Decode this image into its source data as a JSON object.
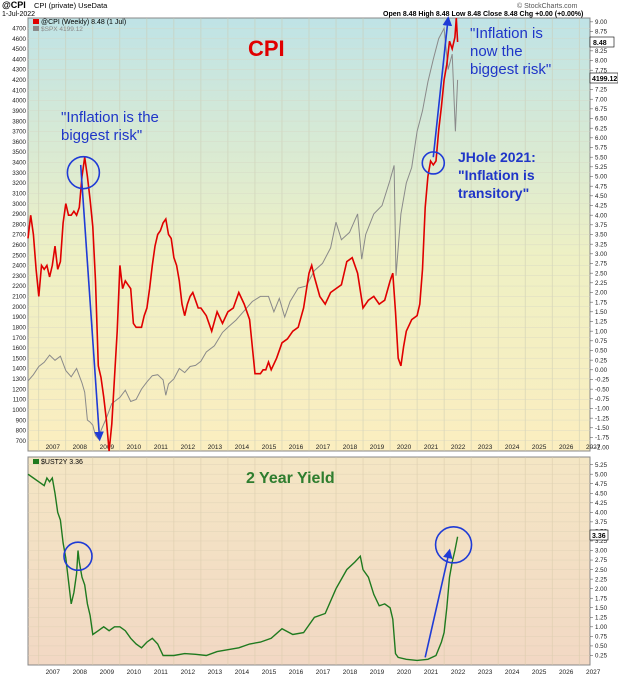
{
  "header": {
    "symbol": "@CPI",
    "symbol_desc": "CPI (private) UseData",
    "date": "1-Jul-2022",
    "ohlc": "Open 8.48  High 8.48  Low 8.48  Close 8.48  Chg +0.00 (+0.00%)",
    "ohlc_arrow": "▲",
    "watermark": "© StockCharts.com"
  },
  "colors": {
    "cpi_line": "#e00000",
    "spx_line": "#8a8a8a",
    "yield_line": "#1f7a1f",
    "arrow": "#1f3bd6",
    "title_red": "#e00000",
    "title_green": "#2e7d2e",
    "annotation_blue": "#1f35c8"
  },
  "chart_data": [
    {
      "type": "line",
      "title": "CPI",
      "legend": [
        {
          "name": "@CPI (Weekly) 8.48 (1 Jul)",
          "color": "#e00000"
        },
        {
          "name": "$SPX 4199.12",
          "color": "#8a8a8a"
        }
      ],
      "x_ticks": [
        "2007",
        "2008",
        "2009",
        "2010",
        "2011",
        "2012",
        "2013",
        "2014",
        "2015",
        "2016",
        "2017",
        "2018",
        "2019",
        "2020",
        "2021",
        "2022",
        "2023",
        "2024",
        "2025",
        "2026",
        "2027"
      ],
      "xlim": [
        2006.6,
        2027.4
      ],
      "y_left_ticks": [
        "700",
        "800",
        "900",
        "1000",
        "1100",
        "1200",
        "1300",
        "1400",
        "1500",
        "1600",
        "1700",
        "1800",
        "1900",
        "2000",
        "2100",
        "2200",
        "2300",
        "2400",
        "2500",
        "2600",
        "2700",
        "2800",
        "2900",
        "3000",
        "3100",
        "3200",
        "3300",
        "3400",
        "3500",
        "3600",
        "3700",
        "3800",
        "3900",
        "4000",
        "4100",
        "4200",
        "4300",
        "4400",
        "4500",
        "4600",
        "4700"
      ],
      "ylim_left": [
        600,
        4800
      ],
      "y_right_ticks": [
        "-2.00",
        "-1.75",
        "-1.50",
        "-1.25",
        "-1.00",
        "-0.75",
        "-0.50",
        "-0.25",
        "0.00",
        "0.25",
        "0.50",
        "0.75",
        "1.00",
        "1.25",
        "1.50",
        "1.75",
        "2.00",
        "2.25",
        "2.50",
        "2.75",
        "3.00",
        "3.25",
        "3.50",
        "3.75",
        "4.00",
        "4.25",
        "4.50",
        "4.75",
        "5.00",
        "5.25",
        "5.50",
        "5.75",
        "6.00",
        "6.25",
        "6.50",
        "6.75",
        "7.00",
        "7.25",
        "7.50",
        "7.75",
        "8.00",
        "8.25",
        "8.50",
        "8.75",
        "9.00"
      ],
      "ylim_right": [
        -2.1,
        9.1
      ],
      "last_labels": {
        "cpi": "8.48",
        "spx": "4199.12"
      },
      "series": [
        {
          "name": "@CPI (Weekly) 8.48 (1 Jul)",
          "axis": "right",
          "x": [
            2006.6,
            2006.7,
            2006.8,
            2006.9,
            2007.0,
            2007.1,
            2007.2,
            2007.3,
            2007.4,
            2007.5,
            2007.6,
            2007.7,
            2007.8,
            2007.9,
            2008.0,
            2008.1,
            2008.2,
            2008.3,
            2008.4,
            2008.5,
            2008.6,
            2008.7,
            2008.8,
            2008.9,
            2009.0,
            2009.1,
            2009.2,
            2009.3,
            2009.4,
            2009.5,
            2009.6,
            2009.7,
            2009.8,
            2009.9,
            2010.0,
            2010.1,
            2010.2,
            2010.3,
            2010.4,
            2010.5,
            2010.6,
            2010.7,
            2010.8,
            2010.9,
            2011.0,
            2011.1,
            2011.2,
            2011.3,
            2011.4,
            2011.5,
            2011.6,
            2011.7,
            2011.8,
            2011.9,
            2012.0,
            2012.1,
            2012.2,
            2012.3,
            2012.4,
            2012.5,
            2012.6,
            2012.7,
            2012.8,
            2012.9,
            2013.0,
            2013.2,
            2013.4,
            2013.6,
            2013.8,
            2014.0,
            2014.2,
            2014.4,
            2014.6,
            2014.8,
            2015.0,
            2015.1,
            2015.2,
            2015.3,
            2015.4,
            2015.5,
            2015.6,
            2015.8,
            2016.0,
            2016.2,
            2016.4,
            2016.6,
            2016.8,
            2017.0,
            2017.1,
            2017.2,
            2017.4,
            2017.6,
            2017.8,
            2018.0,
            2018.2,
            2018.4,
            2018.6,
            2018.8,
            2019.0,
            2019.2,
            2019.4,
            2019.6,
            2019.8,
            2020.0,
            2020.1,
            2020.2,
            2020.3,
            2020.4,
            2020.5,
            2020.6,
            2020.8,
            2021.0,
            2021.1,
            2021.2,
            2021.3,
            2021.4,
            2021.5,
            2021.6,
            2021.7,
            2021.8,
            2021.9,
            2022.0,
            2022.1,
            2022.2,
            2022.3,
            2022.4,
            2022.45,
            2022.5
          ],
          "y": [
            3.4,
            4.0,
            3.5,
            2.6,
            1.9,
            2.7,
            2.6,
            2.7,
            2.4,
            2.7,
            3.2,
            2.6,
            2.8,
            3.8,
            4.3,
            4.0,
            4.0,
            4.1,
            4.0,
            4.2,
            5.0,
            5.5,
            5.0,
            4.4,
            3.7,
            2.3,
            0.1,
            -0.2,
            -0.7,
            -1.3,
            -2.1,
            -1.4,
            -0.2,
            1.0,
            2.7,
            2.1,
            2.3,
            2.2,
            2.1,
            1.2,
            1.1,
            1.1,
            1.1,
            1.4,
            1.6,
            2.1,
            2.7,
            3.2,
            3.5,
            3.6,
            3.8,
            3.9,
            3.5,
            3.4,
            2.9,
            2.7,
            2.3,
            1.7,
            1.4,
            1.7,
            1.9,
            2.0,
            1.8,
            1.6,
            1.6,
            1.4,
            1.0,
            1.5,
            1.2,
            1.5,
            1.6,
            2.0,
            1.7,
            1.3,
            -0.1,
            -0.1,
            -0.1,
            0.0,
            0.0,
            0.2,
            0.0,
            0.3,
            0.7,
            0.8,
            1.0,
            1.1,
            1.6,
            2.5,
            2.7,
            2.4,
            1.9,
            1.7,
            2.0,
            2.1,
            2.2,
            2.8,
            2.9,
            2.5,
            1.6,
            1.8,
            1.9,
            1.7,
            1.8,
            2.3,
            2.5,
            1.5,
            0.3,
            0.1,
            0.6,
            1.0,
            1.3,
            1.4,
            1.7,
            2.6,
            4.2,
            5.0,
            5.4,
            5.3,
            5.4,
            6.2,
            6.8,
            7.5,
            7.9,
            8.5,
            8.3,
            8.6,
            9.1,
            8.48
          ]
        },
        {
          "name": "$SPX 4199.12",
          "axis": "left",
          "x": [
            2006.6,
            2006.8,
            2007.0,
            2007.2,
            2007.4,
            2007.6,
            2007.8,
            2008.0,
            2008.2,
            2008.4,
            2008.6,
            2008.7,
            2008.8,
            2008.9,
            2009.0,
            2009.1,
            2009.2,
            2009.3,
            2009.5,
            2009.7,
            2010.0,
            2010.2,
            2010.4,
            2010.6,
            2010.8,
            2011.0,
            2011.2,
            2011.4,
            2011.6,
            2011.7,
            2011.8,
            2012.0,
            2012.2,
            2012.4,
            2012.6,
            2012.8,
            2013.0,
            2013.2,
            2013.5,
            2013.8,
            2014.0,
            2014.3,
            2014.6,
            2014.9,
            2015.2,
            2015.5,
            2015.7,
            2015.9,
            2016.1,
            2016.3,
            2016.6,
            2016.9,
            2017.2,
            2017.5,
            2017.8,
            2018.0,
            2018.2,
            2018.5,
            2018.8,
            2018.95,
            2019.1,
            2019.4,
            2019.7,
            2020.0,
            2020.15,
            2020.22,
            2020.4,
            2020.6,
            2020.8,
            2021.0,
            2021.2,
            2021.4,
            2021.6,
            2021.8,
            2022.0,
            2022.15,
            2022.3,
            2022.42,
            2022.5
          ],
          "y": [
            1280,
            1340,
            1420,
            1460,
            1530,
            1480,
            1520,
            1380,
            1320,
            1400,
            1260,
            1170,
            900,
            880,
            850,
            750,
            720,
            800,
            920,
            1060,
            1120,
            1190,
            1080,
            1100,
            1200,
            1270,
            1330,
            1340,
            1290,
            1140,
            1250,
            1300,
            1400,
            1360,
            1420,
            1430,
            1470,
            1560,
            1620,
            1750,
            1800,
            1870,
            1960,
            2050,
            2100,
            2100,
            1950,
            2080,
            1900,
            2050,
            2180,
            2200,
            2350,
            2420,
            2570,
            2820,
            2650,
            2720,
            2900,
            2460,
            2700,
            2900,
            2980,
            3230,
            3370,
            2300,
            2900,
            3200,
            3350,
            3700,
            3900,
            4180,
            4400,
            4600,
            4700,
            4300,
            4450,
            3700,
            4199.12
          ]
        }
      ]
    },
    {
      "type": "line",
      "title": "2 Year Yield",
      "legend": [
        {
          "name": "$UST2Y 3.36",
          "color": "#1f7a1f"
        }
      ],
      "x_ticks": [
        "2007",
        "2008",
        "2009",
        "2010",
        "2011",
        "2012",
        "2013",
        "2014",
        "2015",
        "2016",
        "2017",
        "2018",
        "2019",
        "2020",
        "2021",
        "2022",
        "2023",
        "2024",
        "2025",
        "2026",
        "2027"
      ],
      "xlim": [
        2006.6,
        2027.4
      ],
      "y_right_ticks": [
        "0.25",
        "0.50",
        "0.75",
        "1.00",
        "1.25",
        "1.50",
        "1.75",
        "2.00",
        "2.25",
        "2.50",
        "2.75",
        "3.00",
        "3.25",
        "3.50",
        "3.75",
        "4.00",
        "4.25",
        "4.50",
        "4.75",
        "5.00",
        "5.25"
      ],
      "ylim": [
        0.0,
        5.45
      ],
      "last_label": "3.36",
      "series": [
        {
          "name": "$UST2Y 3.36",
          "x": [
            2006.6,
            2006.8,
            2007.0,
            2007.2,
            2007.3,
            2007.4,
            2007.5,
            2007.6,
            2007.7,
            2007.8,
            2007.9,
            2008.0,
            2008.1,
            2008.2,
            2008.3,
            2008.4,
            2008.45,
            2008.5,
            2008.6,
            2008.7,
            2008.8,
            2008.9,
            2009.0,
            2009.2,
            2009.4,
            2009.6,
            2009.8,
            2010.0,
            2010.2,
            2010.4,
            2010.6,
            2010.8,
            2011.0,
            2011.2,
            2011.4,
            2011.6,
            2011.8,
            2012.0,
            2012.4,
            2012.8,
            2013.2,
            2013.6,
            2014.0,
            2014.4,
            2014.8,
            2015.2,
            2015.6,
            2016.0,
            2016.4,
            2016.8,
            2017.2,
            2017.6,
            2018.0,
            2018.4,
            2018.7,
            2018.9,
            2019.0,
            2019.2,
            2019.4,
            2019.6,
            2019.8,
            2020.0,
            2020.1,
            2020.2,
            2020.3,
            2020.6,
            2021.0,
            2021.4,
            2021.7,
            2021.9,
            2022.0,
            2022.1,
            2022.2,
            2022.3,
            2022.4,
            2022.5
          ],
          "y": [
            5.0,
            4.9,
            4.8,
            4.7,
            4.9,
            4.8,
            4.9,
            4.5,
            4.0,
            3.8,
            3.2,
            2.8,
            2.2,
            1.6,
            1.9,
            2.4,
            3.0,
            2.7,
            2.3,
            2.1,
            1.6,
            1.3,
            0.8,
            0.9,
            1.0,
            0.9,
            1.0,
            1.0,
            0.9,
            0.7,
            0.55,
            0.45,
            0.6,
            0.7,
            0.55,
            0.25,
            0.25,
            0.25,
            0.3,
            0.28,
            0.25,
            0.35,
            0.4,
            0.45,
            0.55,
            0.6,
            0.7,
            0.95,
            0.8,
            0.85,
            1.25,
            1.35,
            2.0,
            2.5,
            2.7,
            2.85,
            2.5,
            2.3,
            1.85,
            1.55,
            1.6,
            1.5,
            1.2,
            0.3,
            0.2,
            0.15,
            0.12,
            0.15,
            0.25,
            0.6,
            0.85,
            1.5,
            2.3,
            2.7,
            3.0,
            3.36
          ]
        }
      ]
    }
  ],
  "annotations": {
    "cpi_title": "CPI",
    "yield_title": "2 Year Yield",
    "note_2008_line1": "\"Inflation is the",
    "note_2008_line2": "biggest risk\"",
    "note_2022_line1": "\"Inflation is",
    "note_2022_line2": "now the",
    "note_2022_line3": "biggest risk\"",
    "note_2021_line1": "JHole 2021:",
    "note_2021_line2": "\"Inflation is",
    "note_2021_line3": "transitory\""
  }
}
